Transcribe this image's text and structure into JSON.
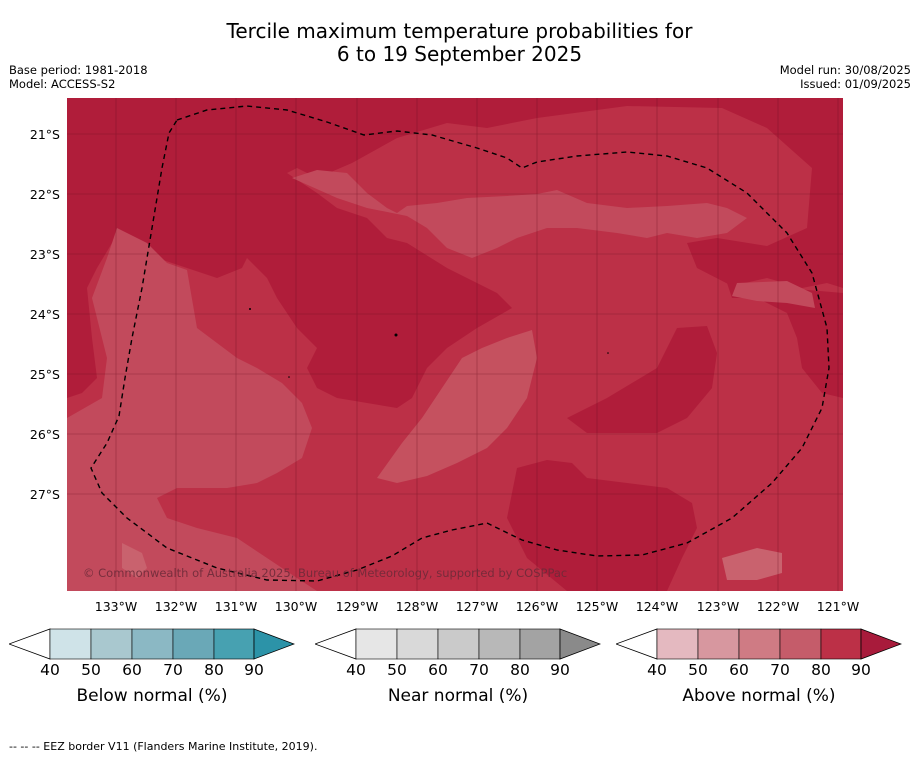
{
  "title_line1": "Tercile maximum temperature probabilities for",
  "title_line2": "6 to 19 September 2025",
  "base_period": "Base period: 1981-2018",
  "model": "Model: ACCESS-S2",
  "model_run": "Model run: 30/08/2025",
  "issued": "Issued: 01/09/2025",
  "lat_labels": [
    "21°S",
    "22°S",
    "23°S",
    "24°S",
    "25°S",
    "26°S",
    "27°S"
  ],
  "lon_labels": [
    "133°W",
    "132°W",
    "131°W",
    "130°W",
    "129°W",
    "128°W",
    "127°W",
    "126°W",
    "125°W",
    "124°W",
    "123°W",
    "122°W",
    "121°W"
  ],
  "copyright": "© Commonwealth of Australia 2025, Bureau of Meteorology, supported by COSPPac",
  "colorbars": [
    {
      "label": "Below normal (%)",
      "ticks": [
        "40",
        "50",
        "60",
        "70",
        "80",
        "90"
      ],
      "colors": [
        "#cfe3e8",
        "#a9c8cf",
        "#8bb8c4",
        "#6aa8b7",
        "#47a1b1",
        "#2c93a8"
      ]
    },
    {
      "label": "Near normal (%)",
      "ticks": [
        "40",
        "50",
        "60",
        "70",
        "80",
        "90"
      ],
      "colors": [
        "#e6e6e6",
        "#d9d9d9",
        "#cacaca",
        "#b8b8b8",
        "#a3a3a3",
        "#8a8a8a"
      ]
    },
    {
      "label": "Above normal (%)",
      "ticks": [
        "40",
        "50",
        "60",
        "70",
        "80",
        "90"
      ],
      "colors": [
        "#e4b9c0",
        "#d7979f",
        "#cf7b84",
        "#c55c6a",
        "#bc3047",
        "#a81b3b"
      ]
    }
  ],
  "footnote": "--  --  -- EEZ border V11 (Flanders Marine Institute, 2019)."
}
